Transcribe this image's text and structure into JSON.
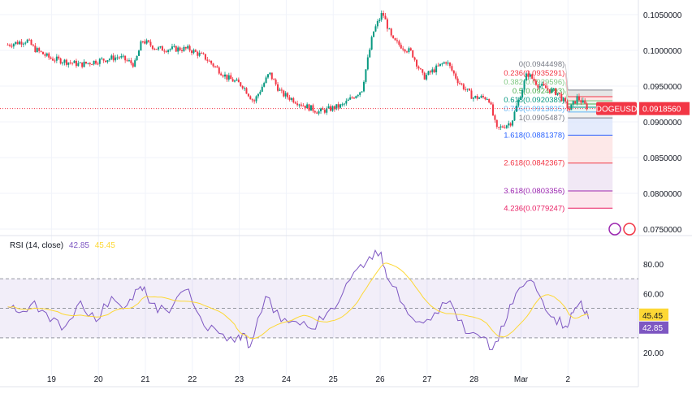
{
  "chart_data": {
    "type": "candlestick",
    "symbol": "DOGEUSD",
    "last_price": "0.0918560",
    "price_axis": [
      "0.1050000",
      "0.1000000",
      "0.0950000",
      "0.0900000",
      "0.0850000",
      "0.0800000",
      "0.0750000"
    ],
    "ylim": [
      0.0745,
      0.1065
    ],
    "x_ticks": [
      {
        "d": 19,
        "label": "19"
      },
      {
        "d": 20,
        "label": "20"
      },
      {
        "d": 21,
        "label": "21"
      },
      {
        "d": 22,
        "label": "22"
      },
      {
        "d": 23,
        "label": "23"
      },
      {
        "d": 24,
        "label": "24"
      },
      {
        "d": 25,
        "label": "25"
      },
      {
        "d": 26,
        "label": "26"
      },
      {
        "d": 27,
        "label": "27"
      },
      {
        "d": 28,
        "label": "28"
      },
      {
        "d": 29,
        "label": "Mar"
      },
      {
        "d": 30,
        "label": "2"
      }
    ],
    "xlim": [
      17.99,
      31.5
    ],
    "price_path": [
      [
        18.07,
        0.1008
      ],
      [
        18.48,
        0.1014
      ],
      [
        18.64,
        0.1002
      ],
      [
        18.97,
        0.0989
      ],
      [
        19.62,
        0.098
      ],
      [
        19.95,
        0.0985
      ],
      [
        20.44,
        0.0991
      ],
      [
        20.77,
        0.098
      ],
      [
        20.93,
        0.1014
      ],
      [
        21.26,
        0.1002
      ],
      [
        21.92,
        0.1002
      ],
      [
        22.25,
        0.0991
      ],
      [
        22.74,
        0.0962
      ],
      [
        23.07,
        0.0951
      ],
      [
        23.31,
        0.0928
      ],
      [
        23.64,
        0.0968
      ],
      [
        23.89,
        0.094
      ],
      [
        24.38,
        0.0923
      ],
      [
        24.7,
        0.0914
      ],
      [
        25.2,
        0.0923
      ],
      [
        25.61,
        0.0945
      ],
      [
        25.85,
        0.1025
      ],
      [
        26.05,
        0.1053
      ],
      [
        26.26,
        0.1014
      ],
      [
        26.67,
        0.0997
      ],
      [
        26.92,
        0.0962
      ],
      [
        27.41,
        0.0985
      ],
      [
        27.66,
        0.0957
      ],
      [
        27.98,
        0.0934
      ],
      [
        28.31,
        0.0934
      ],
      [
        28.48,
        0.0889
      ],
      [
        28.8,
        0.09
      ],
      [
        29.13,
        0.0968
      ],
      [
        29.38,
        0.0951
      ],
      [
        29.79,
        0.094
      ],
      [
        30.03,
        0.0917
      ],
      [
        30.2,
        0.0934
      ],
      [
        30.44,
        0.091856
      ]
    ],
    "fib_levels": [
      {
        "label": "0(0.0944498)",
        "value": 0.0944498,
        "color": "#787b86"
      },
      {
        "label": "0.236(0.0935291)",
        "value": 0.0935291,
        "color": "#f23645"
      },
      {
        "label": "0.382(0.0929596)",
        "value": 0.0929596,
        "color": "#81c784"
      },
      {
        "label": "0.5(0.0924993)",
        "value": 0.0924993,
        "color": "#4caf50"
      },
      {
        "label": "0.618(0.0920389)",
        "value": 0.0920389,
        "color": "#089981"
      },
      {
        "label": "0.786(0.0913835)",
        "value": 0.0913835,
        "color": "#64b5f6"
      },
      {
        "label": "1(0.0905487)",
        "value": 0.0905487,
        "color": "#787b86"
      },
      {
        "label": "1.618(0.0881378)",
        "value": 0.0881378,
        "color": "#2962ff"
      },
      {
        "label": "2.618(0.0842367)",
        "value": 0.0842367,
        "color": "#f23645"
      },
      {
        "label": "3.618(0.0803356)",
        "value": 0.0803356,
        "color": "#9c27b0"
      },
      {
        "label": "4.236(0.0779247)",
        "value": 0.0779247,
        "color": "#e91e63"
      }
    ],
    "rsi": {
      "title": "RSI (14, close)",
      "value": "42.85",
      "ma_value": "45.45",
      "axis": [
        "80.00",
        "60.00",
        "20.00"
      ],
      "ylim": [
        12,
        88
      ],
      "upper": 70,
      "lower": 30,
      "mid": 50,
      "series": [
        [
          18.07,
          51
        ],
        [
          18.31,
          47
        ],
        [
          18.64,
          55
        ],
        [
          18.97,
          41
        ],
        [
          19.3,
          38
        ],
        [
          19.62,
          55
        ],
        [
          19.95,
          41
        ],
        [
          20.28,
          58
        ],
        [
          20.61,
          52
        ],
        [
          20.85,
          63
        ],
        [
          21.02,
          60
        ],
        [
          21.26,
          47
        ],
        [
          21.59,
          52
        ],
        [
          21.92,
          63
        ],
        [
          22.25,
          38
        ],
        [
          22.57,
          33
        ],
        [
          22.9,
          27
        ],
        [
          23.07,
          33
        ],
        [
          23.23,
          24
        ],
        [
          23.56,
          58
        ],
        [
          23.89,
          41
        ],
        [
          24.21,
          41
        ],
        [
          24.54,
          36
        ],
        [
          24.87,
          47
        ],
        [
          25.2,
          60
        ],
        [
          25.52,
          77
        ],
        [
          25.77,
          85
        ],
        [
          26.02,
          88
        ],
        [
          26.18,
          69
        ],
        [
          26.51,
          52
        ],
        [
          26.84,
          41
        ],
        [
          27.16,
          47
        ],
        [
          27.49,
          55
        ],
        [
          27.82,
          33
        ],
        [
          28.15,
          30
        ],
        [
          28.39,
          22
        ],
        [
          28.64,
          38
        ],
        [
          28.89,
          60
        ],
        [
          29.21,
          69
        ],
        [
          29.46,
          55
        ],
        [
          29.7,
          44
        ],
        [
          29.95,
          38
        ],
        [
          30.11,
          47
        ],
        [
          30.28,
          55
        ],
        [
          30.44,
          42.85
        ]
      ]
    },
    "colors": {
      "up": "#089981",
      "down": "#f23645",
      "rsi": "#7e57c2",
      "rsi_ma": "#fdd835"
    }
  }
}
